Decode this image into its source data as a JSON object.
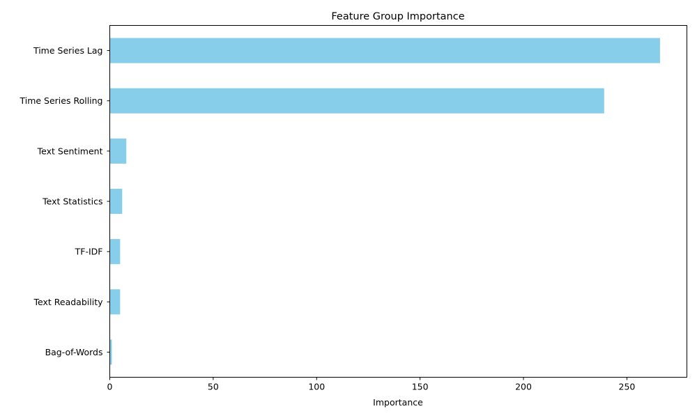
{
  "chart_data": {
    "type": "bar",
    "orientation": "horizontal",
    "title": "Feature Group Importance",
    "xlabel": "Importance",
    "ylabel": "",
    "categories": [
      "Time Series Lag",
      "Time Series Rolling",
      "Text Sentiment",
      "Text Statistics",
      "TF-IDF",
      "Text Readability",
      "Bag-of-Words"
    ],
    "values": [
      266,
      239,
      8,
      6,
      5,
      5,
      1
    ],
    "xlim": [
      0,
      279
    ],
    "xticks": [
      0,
      50,
      100,
      150,
      200,
      250
    ],
    "bar_color": "#87ceeb",
    "grid": false,
    "legend": "none"
  }
}
